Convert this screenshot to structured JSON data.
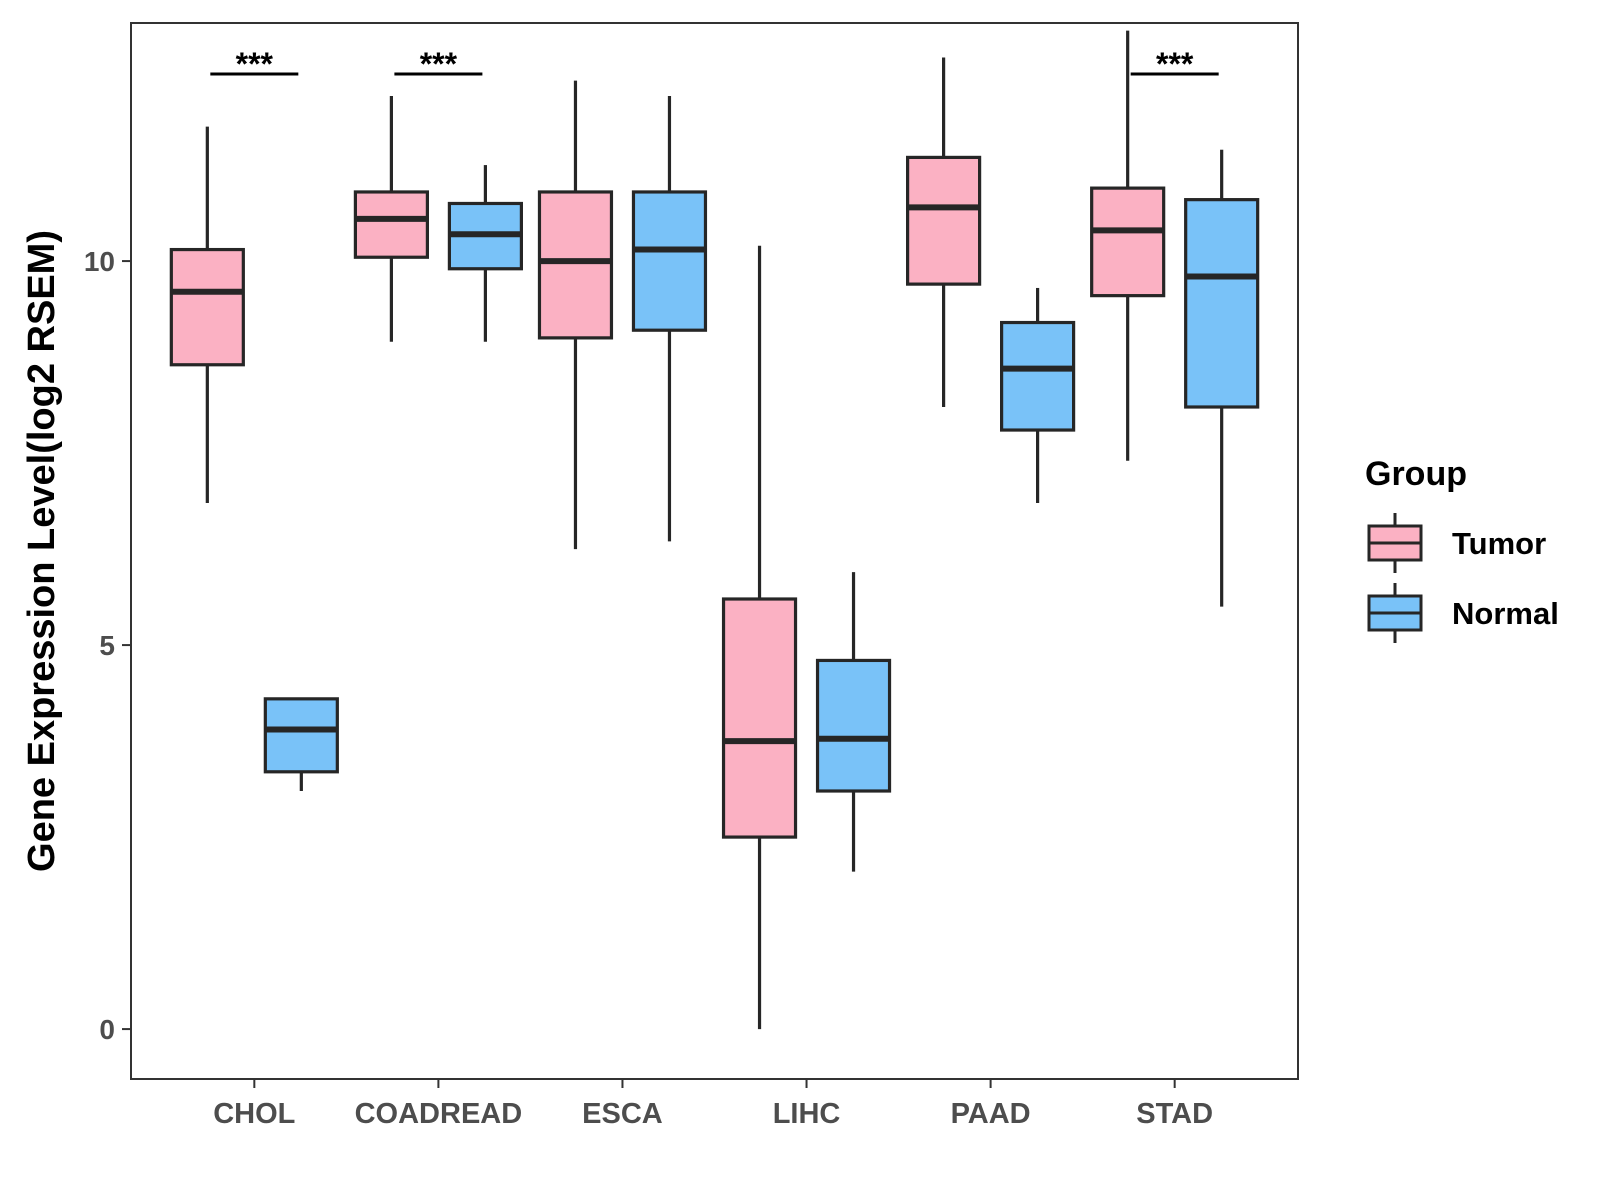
{
  "chart_data": {
    "type": "boxplot",
    "title": "",
    "xlabel": "",
    "ylabel": "Gene Expression Level(log2 RSEM)",
    "ylim": [
      -0.65,
      13.1
    ],
    "yticks": [
      0,
      5,
      10
    ],
    "grid": false,
    "categories": [
      "CHOL",
      "COADREAD",
      "ESCA",
      "LIHC",
      "PAAD",
      "STAD"
    ],
    "legend": {
      "title": "Group",
      "position": "right",
      "entries": [
        {
          "name": "Tumor",
          "color": "#FBB1C3"
        },
        {
          "name": "Normal",
          "color": "#79C2F8"
        }
      ]
    },
    "series": [
      {
        "name": "Tumor",
        "color": "#FBB1C3",
        "boxes": [
          {
            "category": "CHOL",
            "whisker_low": 6.85,
            "q1": 8.65,
            "median": 9.6,
            "q3": 10.15,
            "whisker_high": 11.75
          },
          {
            "category": "COADREAD",
            "whisker_low": 8.95,
            "q1": 10.05,
            "median": 10.55,
            "q3": 10.9,
            "whisker_high": 12.15
          },
          {
            "category": "ESCA",
            "whisker_low": 6.25,
            "q1": 9.0,
            "median": 10.0,
            "q3": 10.9,
            "whisker_high": 12.35
          },
          {
            "category": "LIHC",
            "whisker_low": 0.0,
            "q1": 2.5,
            "median": 3.75,
            "q3": 5.6,
            "whisker_high": 10.2
          },
          {
            "category": "PAAD",
            "whisker_low": 8.1,
            "q1": 9.7,
            "median": 10.7,
            "q3": 11.35,
            "whisker_high": 12.65
          },
          {
            "category": "STAD",
            "whisker_low": 7.4,
            "q1": 9.55,
            "median": 10.4,
            "q3": 10.95,
            "whisker_high": 13.0
          }
        ]
      },
      {
        "name": "Normal",
        "color": "#79C2F8",
        "boxes": [
          {
            "category": "CHOL",
            "whisker_low": 3.1,
            "q1": 3.35,
            "median": 3.9,
            "q3": 4.3,
            "whisker_high": 4.3
          },
          {
            "category": "COADREAD",
            "whisker_low": 8.95,
            "q1": 9.9,
            "median": 10.35,
            "q3": 10.75,
            "whisker_high": 11.25
          },
          {
            "category": "ESCA",
            "whisker_low": 6.35,
            "q1": 9.1,
            "median": 10.15,
            "q3": 10.9,
            "whisker_high": 12.15
          },
          {
            "category": "LIHC",
            "whisker_low": 2.05,
            "q1": 3.1,
            "median": 3.78,
            "q3": 4.8,
            "whisker_high": 5.95
          },
          {
            "category": "PAAD",
            "whisker_low": 6.85,
            "q1": 7.8,
            "median": 8.6,
            "q3": 9.2,
            "whisker_high": 9.65
          },
          {
            "category": "STAD",
            "whisker_low": 5.5,
            "q1": 8.1,
            "median": 9.8,
            "q3": 10.8,
            "whisker_high": 11.45
          }
        ]
      }
    ],
    "significance": [
      {
        "category": "CHOL",
        "label": "***"
      },
      {
        "category": "COADREAD",
        "label": "***"
      },
      {
        "category": "STAD",
        "label": "***"
      }
    ]
  }
}
